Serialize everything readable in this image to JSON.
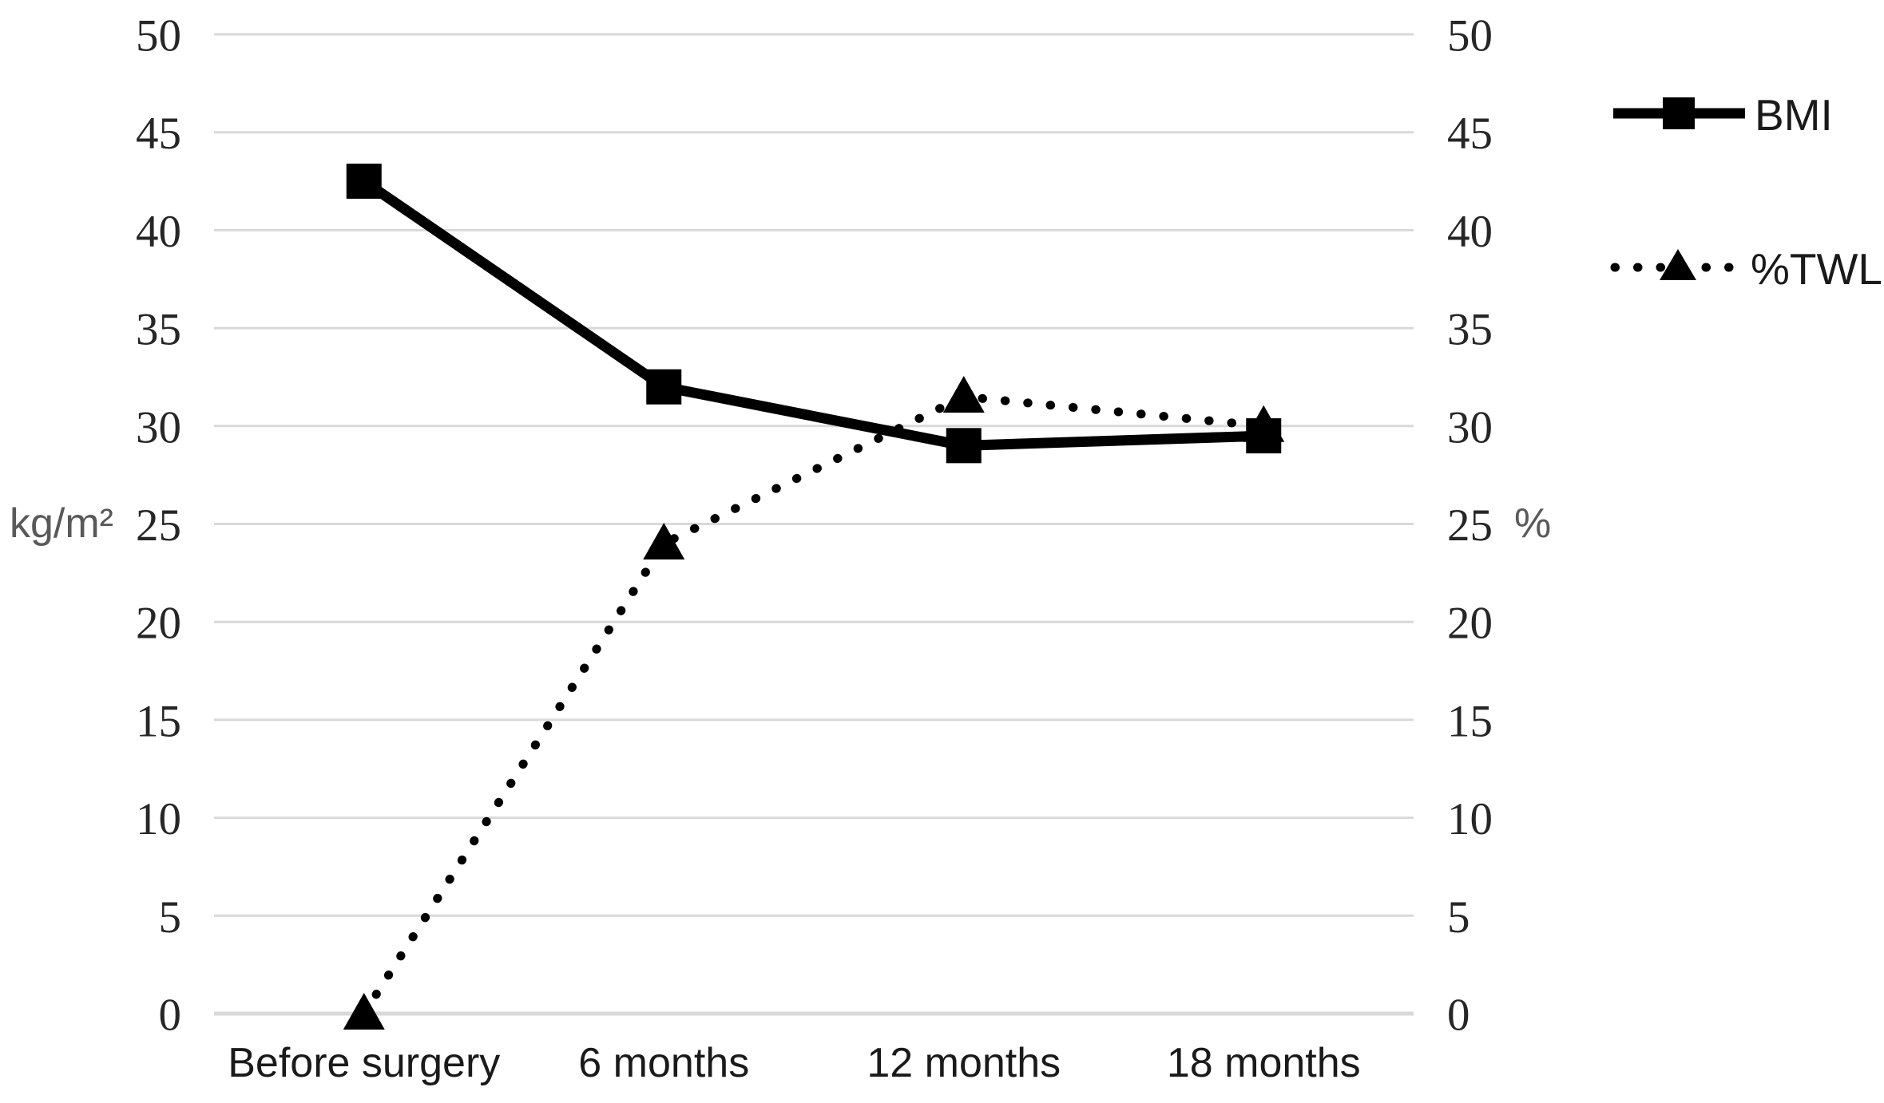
{
  "chart_data": {
    "type": "line",
    "categories": [
      "Before surgery",
      "6 months",
      "12 months",
      "18 months"
    ],
    "series": [
      {
        "name": "BMI",
        "values": [
          42.5,
          32,
          29,
          29.5
        ],
        "line_style": "solid",
        "marker": "square",
        "unit": "kg/m²"
      },
      {
        "name": "%TWL",
        "values": [
          0,
          24,
          31.5,
          30
        ],
        "line_style": "dotted",
        "marker": "triangle",
        "unit": "%"
      }
    ],
    "y_axis": {
      "min": 0,
      "max": 50,
      "tick_step": 5,
      "ticks": [
        0,
        5,
        10,
        15,
        20,
        25,
        30,
        35,
        40,
        45,
        50
      ],
      "left_label": "kg/m²",
      "right_label": "%",
      "ticks_on_both_sides": true
    },
    "grid": "horizontal",
    "legend_position": "top-right",
    "colors": {
      "series": "#000000",
      "gridline": "#d9d9d9",
      "axis_line": "#d9d9d9",
      "tick_text": "#262626",
      "unit_text": "#595959",
      "category_text": "#1a1a1a",
      "legend_text": "#1a1a1a",
      "background": "#ffffff"
    }
  }
}
